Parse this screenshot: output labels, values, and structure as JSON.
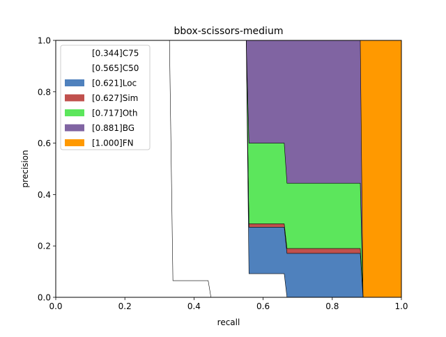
{
  "chart_data": {
    "type": "area",
    "title": "bbox-scissors-medium",
    "xlabel": "recall",
    "ylabel": "precision",
    "xlim": [
      0,
      1
    ],
    "ylim": [
      0,
      1
    ],
    "xticks": [
      "0.0",
      "0.2",
      "0.4",
      "0.6",
      "0.8",
      "1.0"
    ],
    "yticks": [
      "0.0",
      "0.2",
      "0.4",
      "0.6",
      "0.8",
      "1.0"
    ],
    "grid": false,
    "legend_position": "top-left",
    "series": [
      {
        "name": "[0.344]C75",
        "color": "#ffffff",
        "x": [
          0,
          0.329,
          0.339,
          0.339,
          0.441,
          0.449,
          0.449,
          1.0
        ],
        "y": [
          1.0,
          1.0,
          0.065,
          0.065,
          0.065,
          0.0,
          0.0,
          0.0
        ]
      },
      {
        "name": "[0.565]C50",
        "color": "#ffffff",
        "x": [
          0,
          0.551,
          0.559,
          0.559,
          0.661,
          0.669,
          0.669,
          1.0
        ],
        "y": [
          1.0,
          1.0,
          0.092,
          0.092,
          0.092,
          0.0,
          0.0,
          0.0
        ]
      },
      {
        "name": "[0.621]Loc",
        "color": "#4f81bd",
        "x": [
          0,
          0.551,
          0.559,
          0.559,
          0.661,
          0.669,
          0.669,
          0.881,
          0.889,
          0.889,
          1.0
        ],
        "y": [
          1.0,
          1.0,
          0.273,
          0.273,
          0.273,
          0.171,
          0.171,
          0.171,
          0.0,
          0.0,
          0.0
        ]
      },
      {
        "name": "[0.627]Sim",
        "color": "#c0504d",
        "x": [
          0,
          0.551,
          0.559,
          0.559,
          0.661,
          0.669,
          0.669,
          0.881,
          0.889,
          0.889,
          1.0
        ],
        "y": [
          1.0,
          1.0,
          0.286,
          0.286,
          0.286,
          0.19,
          0.19,
          0.19,
          0.0,
          0.0,
          0.0
        ]
      },
      {
        "name": "[0.717]Oth",
        "color": "#5ce65c",
        "x": [
          0,
          0.551,
          0.559,
          0.559,
          0.661,
          0.669,
          0.669,
          0.881,
          0.889,
          0.889,
          1.0
        ],
        "y": [
          1.0,
          1.0,
          0.6,
          0.6,
          0.6,
          0.444,
          0.444,
          0.444,
          0.0,
          0.0,
          0.0
        ]
      },
      {
        "name": "[0.881]BG",
        "color": "#8064a2",
        "x": [
          0,
          0.551,
          0.559,
          0.559,
          0.881,
          0.889,
          0.889,
          1.0
        ],
        "y": [
          1.0,
          1.0,
          1.0,
          1.0,
          1.0,
          0.0,
          0.0,
          0.0
        ]
      },
      {
        "name": "[1.000]FN",
        "color": "#ff9900",
        "x": [
          0,
          1.0
        ],
        "y": [
          1.0,
          1.0
        ]
      }
    ]
  }
}
